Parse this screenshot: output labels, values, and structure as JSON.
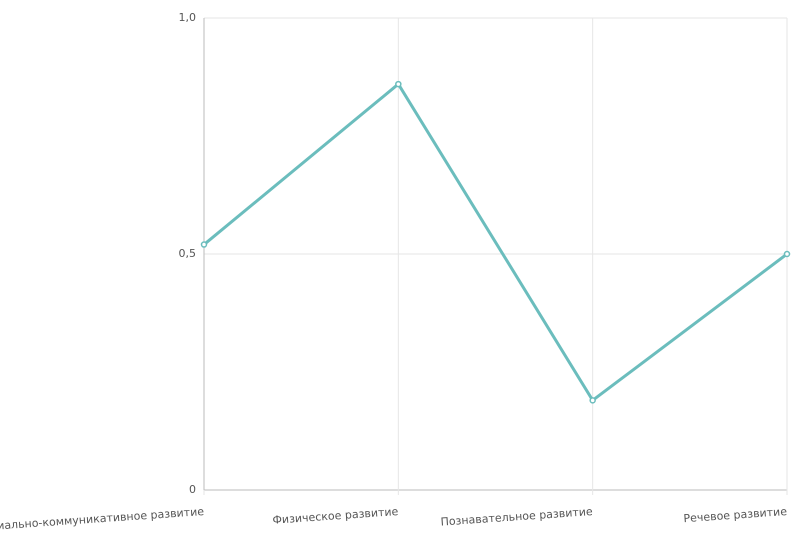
{
  "chart_data": {
    "type": "line",
    "categories": [
      "Социально-коммуникативное развитие",
      "Физическое развитие",
      "Познавательное развитие",
      "Речевое развитие"
    ],
    "series": [
      {
        "color": "#6bbdbd",
        "values": [
          0.52,
          0.86,
          0.19,
          0.5
        ]
      }
    ],
    "ylim": [
      0,
      1
    ],
    "yticks": [
      0,
      {
        "value": 0.5,
        "label": "0,5"
      },
      {
        "value": 1,
        "label": "1,0"
      }
    ],
    "grid": true
  }
}
